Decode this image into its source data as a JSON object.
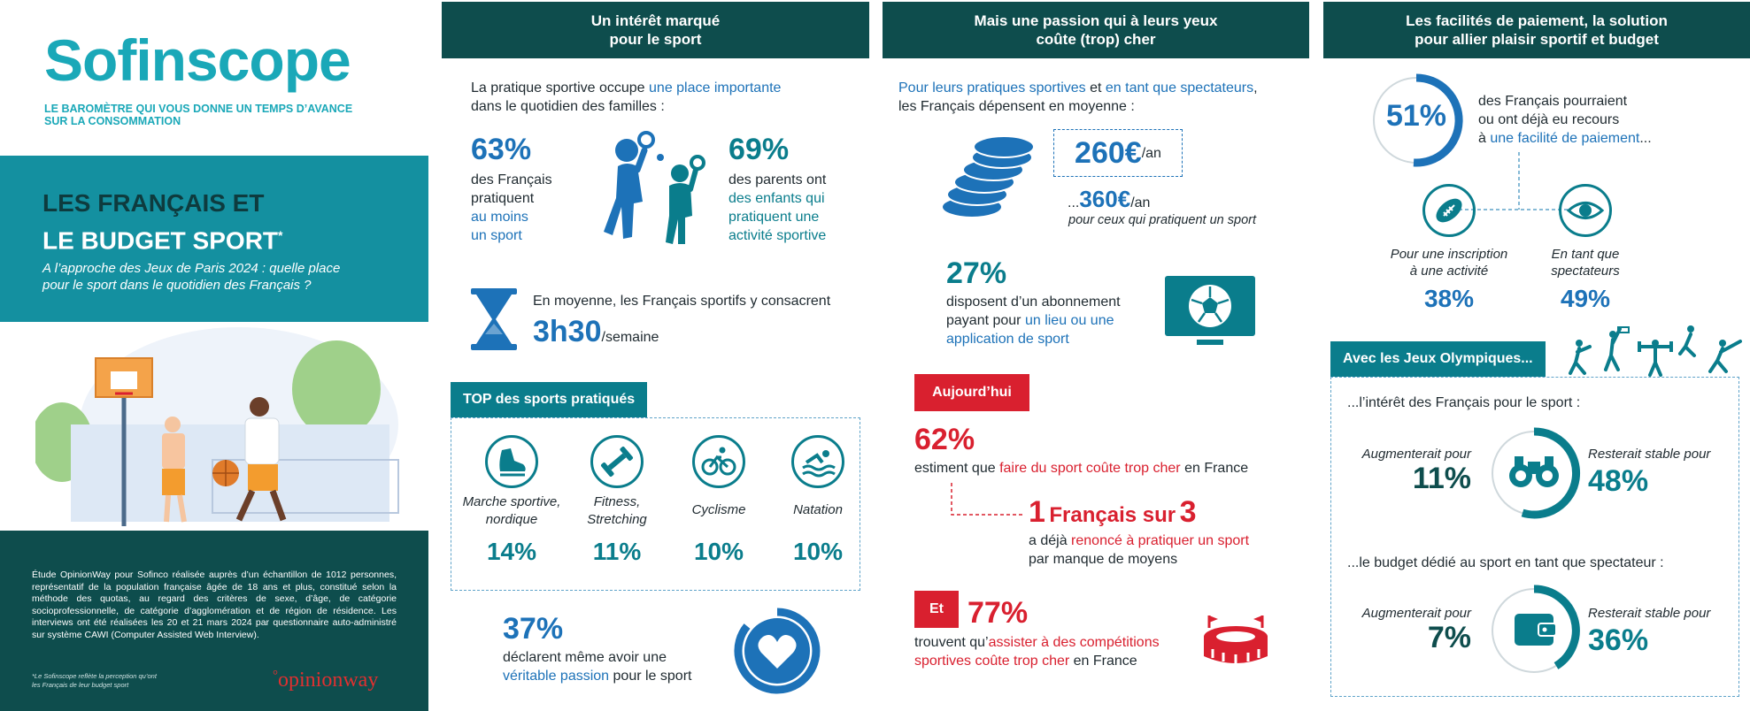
{
  "brand": {
    "logo": "Sofinscope",
    "tagline1": "LE BAROMÈTRE QUI VOUS DONNE UN TEMPS D’AVANCE",
    "tagline2": "SUR LA CONSOMMATION"
  },
  "hero": {
    "title1": "LES FRANÇAIS ET",
    "title2": "LE BUDGET SPORT",
    "star": "*",
    "subtitle1": "A l’approche des Jeux de Paris 2024 : quelle place",
    "subtitle2": "pour le sport dans le quotidien des Français ?"
  },
  "methodology": "Étude OpinionWay pour Sofinco réalisée auprès d’un échantillon de 1012 personnes, représentatif de la population française âgée de 18 ans et plus, constitué selon la méthode des quotas, au regard des critères de sexe, d’âge, de catégorie socioprofessionnelle, de catégorie d’agglomération et de région de résidence. Les interviews ont été réalisées les 20 et 21 mars 2024 par questionnaire auto-administré sur système CAWI (Computer Assisted Web Interview).",
  "footnote1": "*Le Sofinscope reflète la perception qu’ont",
  "footnote2": "les Français de leur budget sport",
  "opinionway": "opinionway",
  "col1": {
    "header": "Un intérêt marqué\npour le sport",
    "intro_a": "La pratique sportive occupe ",
    "intro_b": "une place importante",
    "intro_c": "dans le quotidien des familles :",
    "stat1_value": "63%",
    "stat1_l1": "des Français",
    "stat1_l2": "pratiquent",
    "stat1_l3": "au moins",
    "stat1_l4": "un sport",
    "stat2_value": "69%",
    "stat2_l1": "des parents ont",
    "stat2_l2": "des enfants qui",
    "stat2_l3": "pratiquent une",
    "stat2_l4": "activité sportive",
    "time_text": "En moyenne, les Français sportifs y consacrent",
    "time_value": "3h30",
    "time_unit": "/semaine",
    "top_title": "TOP des sports pratiqués",
    "sports": [
      {
        "label": "Marche sportive, nordique",
        "value": "14%"
      },
      {
        "label": "Fitness, Stretching",
        "value": "11%"
      },
      {
        "label": "Cyclisme",
        "value": "10%"
      },
      {
        "label": "Natation",
        "value": "10%"
      }
    ],
    "passion_value": "37%",
    "passion_l1": "déclarent même avoir une",
    "passion_l2a": "véritable passion",
    "passion_l2b": " pour le sport"
  },
  "col2": {
    "header": "Mais une passion qui à leurs yeux\ncoûte (trop) cher",
    "intro_a": "Pour leurs pratiques sportives",
    "intro_b": " et ",
    "intro_c": "en tant que spectateurs",
    "intro_d": ",",
    "intro_e": "les Français dépensent en moyenne :",
    "spend1": "260€",
    "spend1_unit": "/an",
    "spend2_prefix": "...",
    "spend2": "360€",
    "spend2_unit": "/an",
    "spend2_note": "pour ceux qui pratiquent un sport",
    "sub_value": "27%",
    "sub_l1": "disposent d’un abonnement",
    "sub_l2a": "payant pour ",
    "sub_l2b": "un lieu ou une",
    "sub_l3": "application de sport",
    "today_tag": "Aujourd’hui",
    "expensive_value": "62%",
    "expensive_a": "estiment que ",
    "expensive_b": "faire du sport coûte trop cher",
    "expensive_c": " en France",
    "gaveup_num": "1",
    "gaveup_text": "Français sur",
    "gaveup_num2": "3",
    "gaveup_l1a": "a déjà ",
    "gaveup_l1b": "renoncé à pratiquer un sport",
    "gaveup_l2": "par manque de moyens",
    "et_tag": "Et",
    "comp_value": "77%",
    "comp_a": "trouvent qu’",
    "comp_b": "assister à des compétitions",
    "comp_c": "sportives coûte trop cher",
    "comp_d": " en France"
  },
  "col3": {
    "header": "Les facilités de paiement, la solution\npour allier plaisir sportif et budget",
    "pay_value": "51%",
    "pay_l1": "des Français pourraient",
    "pay_l2": "ou ont déjà eu recours",
    "pay_l3a": "à ",
    "pay_l3b": "une facilité de paiement",
    "pay_l3c": "...",
    "insc_l1": "Pour une inscription",
    "insc_l2": "à une activité",
    "insc_value": "38%",
    "spec_l1": "En tant que",
    "spec_l2": "spectateurs",
    "spec_value": "49%",
    "jo_tag": "Avec les Jeux Olympiques...",
    "interest_title": "...l’intérêt des Français pour le sport :",
    "interest_up_label": "Augmenterait pour",
    "interest_up_value": "11%",
    "interest_stable_label": "Resterait stable pour",
    "interest_stable_value": "48%",
    "budget_title": "...le budget dédié au sport en tant que spectateur :",
    "budget_up_label": "Augmenterait pour",
    "budget_up_value": "7%",
    "budget_stable_label": "Resterait stable pour",
    "budget_stable_value": "36%"
  },
  "colors": {
    "teal": "#0a7d8c",
    "dark_teal": "#0e4d4d",
    "blue": "#1d72b8",
    "red": "#d9202f"
  },
  "icons": [
    "players-icon",
    "hourglass-icon",
    "shoe-icon",
    "dumbbell-icon",
    "bike-icon",
    "swim-icon",
    "heart-icon",
    "coins-icon",
    "screen-ball-icon",
    "stadium-icon",
    "football-icon",
    "eye-icon",
    "binoculars-icon",
    "wallet-icon",
    "athletes-icon"
  ]
}
